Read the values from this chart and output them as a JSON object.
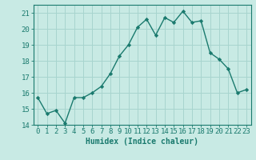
{
  "x": [
    0,
    1,
    2,
    3,
    4,
    5,
    6,
    7,
    8,
    9,
    10,
    11,
    12,
    13,
    14,
    15,
    16,
    17,
    18,
    19,
    20,
    21,
    22,
    23
  ],
  "y": [
    15.7,
    14.7,
    14.9,
    14.1,
    15.7,
    15.7,
    16.0,
    16.4,
    17.2,
    18.3,
    19.0,
    20.1,
    20.6,
    19.6,
    20.7,
    20.4,
    21.1,
    20.4,
    20.5,
    18.5,
    18.1,
    17.5,
    16.0,
    16.2
  ],
  "line_color": "#1a7a6e",
  "marker": "D",
  "marker_size": 2.2,
  "bg_color": "#c8eae4",
  "grid_color": "#a8d4ce",
  "xlabel": "Humidex (Indice chaleur)",
  "ylim": [
    14,
    21.5
  ],
  "xlim": [
    -0.5,
    23.5
  ],
  "yticks": [
    14,
    15,
    16,
    17,
    18,
    19,
    20,
    21
  ],
  "xticks": [
    0,
    1,
    2,
    3,
    4,
    5,
    6,
    7,
    8,
    9,
    10,
    11,
    12,
    13,
    14,
    15,
    16,
    17,
    18,
    19,
    20,
    21,
    22,
    23
  ],
  "line_width": 1.0,
  "xlabel_fontsize": 7,
  "tick_fontsize": 6.5
}
